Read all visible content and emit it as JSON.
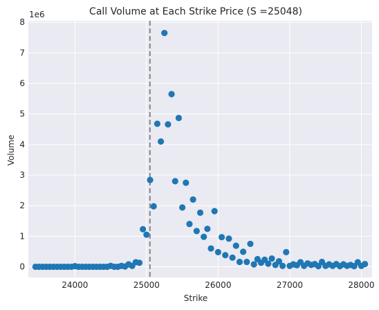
{
  "chart_data": {
    "type": "scatter",
    "title": "Call Volume at Each Strike Price (S =25048)",
    "xlabel": "Strike",
    "ylabel": "Volume",
    "y_offset_text": "1e6",
    "xlim": [
      23350,
      28150
    ],
    "ylim": [
      -350000,
      8050000
    ],
    "x_ticks": [
      24000,
      25000,
      26000,
      27000,
      28000
    ],
    "x_tick_labels": [
      "24000",
      "25000",
      "26000",
      "27000",
      "28000"
    ],
    "y_ticks": [
      0,
      1000000,
      2000000,
      3000000,
      4000000,
      5000000,
      6000000,
      7000000,
      8000000
    ],
    "y_tick_labels": [
      "0",
      "1",
      "2",
      "3",
      "4",
      "5",
      "6",
      "7",
      "8"
    ],
    "grid": true,
    "spot_line": {
      "x": 25048,
      "color": "#8c8c94",
      "style": "dashed"
    },
    "marker_color": "#1f77b4",
    "background": "#eaeaf2",
    "points": [
      {
        "x": 23450,
        "y": 0
      },
      {
        "x": 23500,
        "y": 0
      },
      {
        "x": 23550,
        "y": 0
      },
      {
        "x": 23600,
        "y": 0
      },
      {
        "x": 23650,
        "y": 0
      },
      {
        "x": 23700,
        "y": 0
      },
      {
        "x": 23750,
        "y": 0
      },
      {
        "x": 23800,
        "y": 0
      },
      {
        "x": 23850,
        "y": 0
      },
      {
        "x": 23900,
        "y": 0
      },
      {
        "x": 23950,
        "y": 0
      },
      {
        "x": 24000,
        "y": 20000
      },
      {
        "x": 24050,
        "y": 0
      },
      {
        "x": 24100,
        "y": 0
      },
      {
        "x": 24150,
        "y": 0
      },
      {
        "x": 24200,
        "y": 0
      },
      {
        "x": 24250,
        "y": 0
      },
      {
        "x": 24300,
        "y": 0
      },
      {
        "x": 24350,
        "y": 0
      },
      {
        "x": 24400,
        "y": 0
      },
      {
        "x": 24450,
        "y": 0
      },
      {
        "x": 24500,
        "y": 30000
      },
      {
        "x": 24550,
        "y": 0
      },
      {
        "x": 24600,
        "y": 0
      },
      {
        "x": 24650,
        "y": 30000
      },
      {
        "x": 24700,
        "y": 10000
      },
      {
        "x": 24750,
        "y": 80000
      },
      {
        "x": 24800,
        "y": 30000
      },
      {
        "x": 24850,
        "y": 150000
      },
      {
        "x": 24900,
        "y": 130000
      },
      {
        "x": 24950,
        "y": 1230000
      },
      {
        "x": 25000,
        "y": 1050000
      },
      {
        "x": 25050,
        "y": 2840000
      },
      {
        "x": 25100,
        "y": 1980000
      },
      {
        "x": 25150,
        "y": 4680000
      },
      {
        "x": 25200,
        "y": 4100000
      },
      {
        "x": 25250,
        "y": 7650000
      },
      {
        "x": 25300,
        "y": 4660000
      },
      {
        "x": 25350,
        "y": 5650000
      },
      {
        "x": 25400,
        "y": 2800000
      },
      {
        "x": 25450,
        "y": 4870000
      },
      {
        "x": 25500,
        "y": 1940000
      },
      {
        "x": 25550,
        "y": 2750000
      },
      {
        "x": 25600,
        "y": 1400000
      },
      {
        "x": 25650,
        "y": 2200000
      },
      {
        "x": 25700,
        "y": 1170000
      },
      {
        "x": 25750,
        "y": 1770000
      },
      {
        "x": 25800,
        "y": 980000
      },
      {
        "x": 25850,
        "y": 1240000
      },
      {
        "x": 25900,
        "y": 600000
      },
      {
        "x": 25950,
        "y": 1820000
      },
      {
        "x": 26000,
        "y": 480000
      },
      {
        "x": 26050,
        "y": 970000
      },
      {
        "x": 26100,
        "y": 380000
      },
      {
        "x": 26150,
        "y": 920000
      },
      {
        "x": 26200,
        "y": 300000
      },
      {
        "x": 26250,
        "y": 690000
      },
      {
        "x": 26300,
        "y": 160000
      },
      {
        "x": 26350,
        "y": 490000
      },
      {
        "x": 26400,
        "y": 160000
      },
      {
        "x": 26450,
        "y": 750000
      },
      {
        "x": 26500,
        "y": 80000
      },
      {
        "x": 26550,
        "y": 250000
      },
      {
        "x": 26600,
        "y": 130000
      },
      {
        "x": 26650,
        "y": 230000
      },
      {
        "x": 26700,
        "y": 100000
      },
      {
        "x": 26750,
        "y": 270000
      },
      {
        "x": 26800,
        "y": 60000
      },
      {
        "x": 26850,
        "y": 180000
      },
      {
        "x": 26900,
        "y": 30000
      },
      {
        "x": 26950,
        "y": 480000
      },
      {
        "x": 27000,
        "y": 30000
      },
      {
        "x": 27050,
        "y": 80000
      },
      {
        "x": 27100,
        "y": 50000
      },
      {
        "x": 27150,
        "y": 150000
      },
      {
        "x": 27200,
        "y": 30000
      },
      {
        "x": 27250,
        "y": 110000
      },
      {
        "x": 27300,
        "y": 60000
      },
      {
        "x": 27350,
        "y": 90000
      },
      {
        "x": 27400,
        "y": 20000
      },
      {
        "x": 27450,
        "y": 160000
      },
      {
        "x": 27500,
        "y": 30000
      },
      {
        "x": 27550,
        "y": 80000
      },
      {
        "x": 27600,
        "y": 30000
      },
      {
        "x": 27650,
        "y": 90000
      },
      {
        "x": 27700,
        "y": 20000
      },
      {
        "x": 27750,
        "y": 80000
      },
      {
        "x": 27800,
        "y": 30000
      },
      {
        "x": 27850,
        "y": 60000
      },
      {
        "x": 27900,
        "y": 20000
      },
      {
        "x": 27950,
        "y": 150000
      },
      {
        "x": 28000,
        "y": 30000
      },
      {
        "x": 28050,
        "y": 90000
      }
    ]
  }
}
